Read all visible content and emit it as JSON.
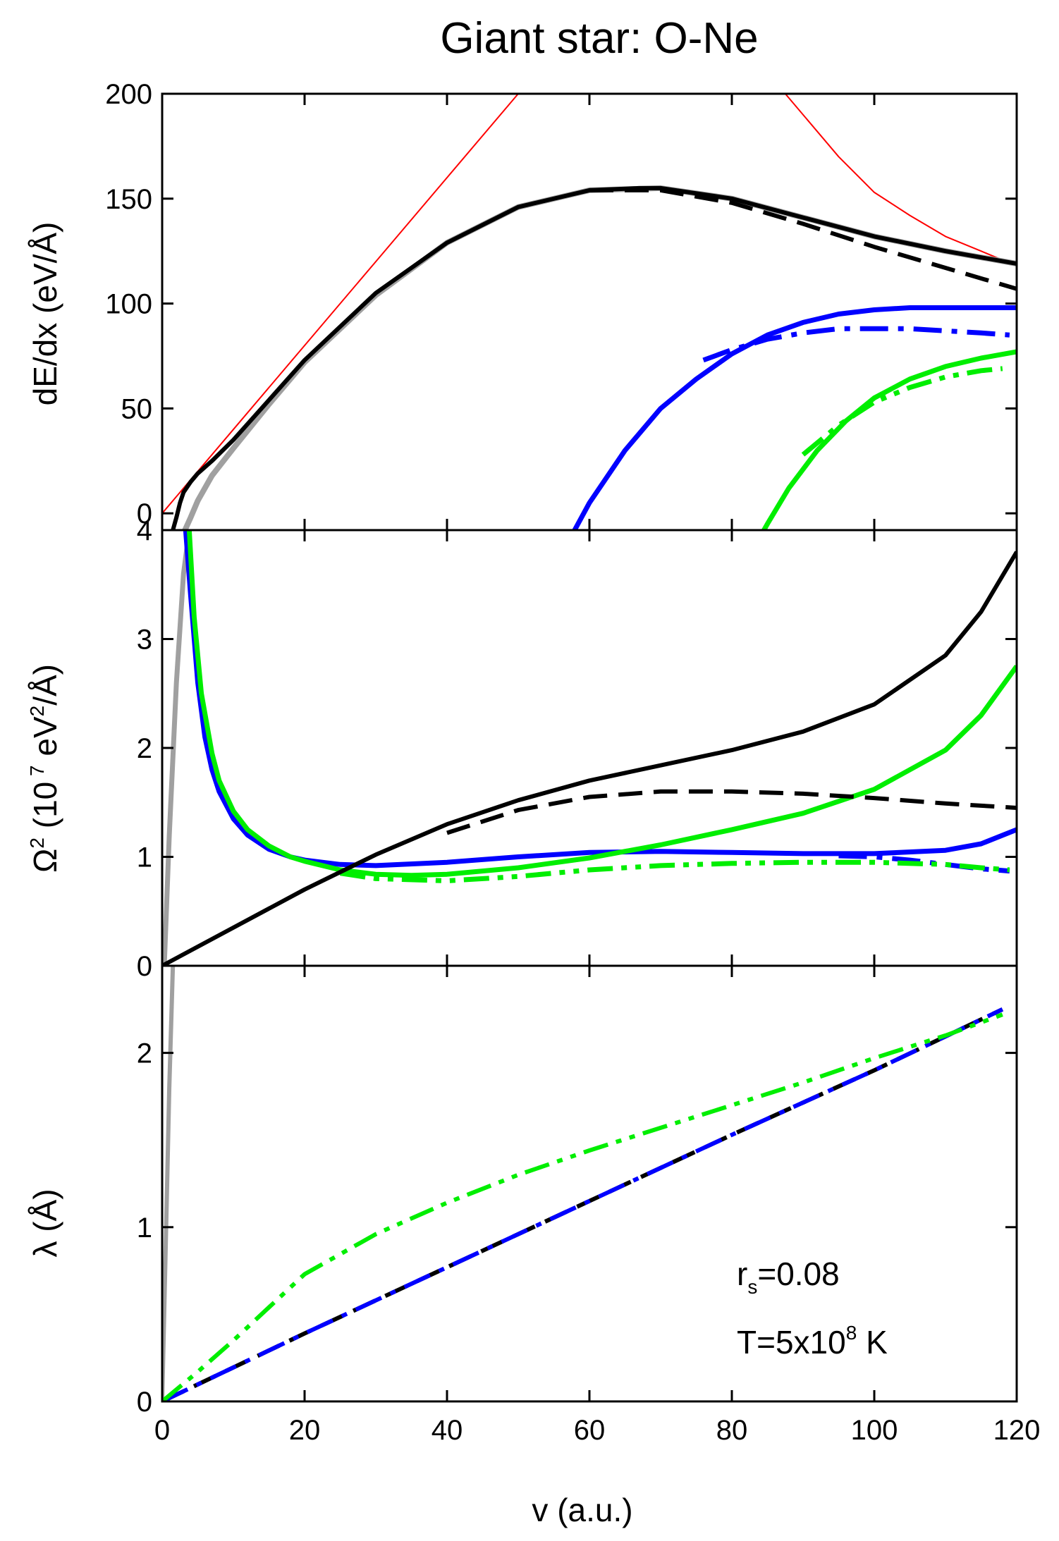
{
  "chart_data": {
    "title": "Giant star:  O-Ne",
    "shared_x": {
      "label": "v (a.u.)",
      "range": [
        0,
        120
      ],
      "ticks": [
        0,
        20,
        40,
        60,
        80,
        100,
        120
      ],
      "tick_labels": [
        "0",
        "20",
        "40",
        "60",
        "80",
        "100",
        "120"
      ]
    },
    "annotation": {
      "rs_main": "r",
      "rs_sub": "s",
      "rs_value": "=0.08",
      "T_main": "T=5x10",
      "T_exp": "8",
      "T_unit": " K"
    },
    "panels": [
      {
        "type": "line",
        "id": "stopping",
        "ylabel": "dE/dx (eV/Å)",
        "ylim": [
          -8,
          200
        ],
        "yticks": [
          0,
          50,
          100,
          150,
          200
        ],
        "ytick_labels": [
          "0",
          "50",
          "100",
          "150",
          "200"
        ],
        "series": [
          {
            "name": "red-asymptote-low",
            "color": "#ff0000",
            "style": "solid",
            "width": 2,
            "x": [
              0,
              5,
              10,
              20,
              30,
              40,
              50
            ],
            "y": [
              0,
              20,
              40,
              80,
              120,
              160,
              200
            ]
          },
          {
            "name": "red-asymptote-high",
            "color": "#ff0000",
            "style": "solid",
            "width": 2,
            "x": [
              87.5,
              95,
              100,
              105,
              110,
              115,
              118.5
            ],
            "y": [
              200,
              170,
              153,
              142,
              132,
              125,
              120
            ]
          },
          {
            "name": "grey-total",
            "color": "#a0a0a0",
            "style": "solid",
            "width": 8,
            "x": [
              3.2,
              4,
              5,
              7,
              10,
              15,
              20,
              30,
              40,
              50,
              60,
              70,
              80,
              90,
              100,
              110,
              120
            ],
            "y": [
              -8,
              -2,
              6,
              18,
              31,
              52,
              72,
              104,
              129,
              146,
              154,
              155,
              150,
              141,
              132,
              125,
              119
            ]
          },
          {
            "name": "black-total",
            "color": "#000000",
            "style": "solid",
            "width": 6,
            "x": [
              1.5,
              2,
              2.5,
              3,
              4,
              5,
              7,
              10,
              15,
              20,
              30,
              40,
              50,
              60,
              67,
              70,
              80,
              90,
              100,
              110,
              120
            ],
            "y": [
              -8,
              -2,
              5,
              10,
              15,
              19,
              25,
              35,
              54,
              73,
              105,
              129,
              146,
              154,
              155,
              155,
              150,
              141,
              132,
              125,
              119
            ]
          },
          {
            "name": "black-dash",
            "color": "#000000",
            "style": "dash",
            "width": 6,
            "x": [
              60,
              70,
              80,
              90,
              100,
              110,
              120
            ],
            "y": [
              154,
              154,
              148,
              138,
              127,
              117,
              107
            ]
          },
          {
            "name": "blue-solid",
            "color": "#0000ff",
            "style": "solid",
            "width": 7,
            "x": [
              56,
              60,
              65,
              70,
              75,
              80,
              85,
              90,
              95,
              100,
              105,
              110,
              115,
              120
            ],
            "y": [
              -20,
              5,
              30,
              50,
              64,
              76,
              85,
              91,
              95,
              97,
              98,
              98,
              98,
              98
            ]
          },
          {
            "name": "blue-dashdot",
            "color": "#0000ff",
            "style": "dashdot",
            "width": 7,
            "x": [
              76,
              80,
              85,
              90,
              95,
              100,
              105,
              110,
              115,
              119
            ],
            "y": [
              73,
              78,
              83,
              86,
              88,
              88,
              88,
              87,
              86,
              85
            ]
          },
          {
            "name": "green-solid",
            "color": "#00ee00",
            "style": "solid",
            "width": 7,
            "x": [
              82.5,
              85,
              88,
              92,
              96,
              100,
              105,
              110,
              115,
              120
            ],
            "y": [
              -20,
              -5,
              12,
              30,
              44,
              55,
              64,
              70,
              74,
              77
            ]
          },
          {
            "name": "green-dashdotdot",
            "color": "#00ee00",
            "style": "dashdotdot",
            "width": 7,
            "x": [
              90,
              95,
              100,
              105,
              110,
              115,
              118
            ],
            "y": [
              28,
              42,
              53,
              60,
              65,
              68,
              69
            ]
          }
        ]
      },
      {
        "type": "line",
        "id": "straggling",
        "ylabel_parts": {
          "omega": "Ω",
          "sq1": "2",
          "open": " (10",
          "exp": " 7",
          "unit": " eV",
          "sq2": "2",
          "close": "/Å)"
        },
        "ylim": [
          0,
          4
        ],
        "yticks": [
          0,
          1,
          2,
          3,
          4
        ],
        "ytick_labels": [
          "0",
          "1",
          "2",
          "3",
          "4"
        ],
        "series": [
          {
            "name": "grey-rise",
            "color": "#a0a0a0",
            "style": "solid",
            "width": 7,
            "x": [
              0.3,
              1,
              2,
              3,
              3.8
            ],
            "y": [
              0,
              1.2,
              2.6,
              3.6,
              4.0
            ]
          },
          {
            "name": "blue-solid",
            "color": "#0000ff",
            "style": "solid",
            "width": 7,
            "x": [
              3.3,
              4,
              5,
              6,
              7,
              8,
              10,
              12,
              15,
              18,
              20,
              25,
              30,
              40,
              50,
              60,
              70,
              80,
              90,
              100,
              110,
              115,
              120
            ],
            "y": [
              4.0,
              3.4,
              2.6,
              2.1,
              1.8,
              1.6,
              1.35,
              1.2,
              1.07,
              1.0,
              0.97,
              0.93,
              0.92,
              0.95,
              1.0,
              1.04,
              1.05,
              1.04,
              1.03,
              1.03,
              1.06,
              1.12,
              1.25
            ]
          },
          {
            "name": "blue-dashdot",
            "color": "#0000ff",
            "style": "dashdot",
            "width": 7,
            "x": [
              95,
              100,
              105,
              110,
              115,
              119
            ],
            "y": [
              1.01,
              1.0,
              0.97,
              0.93,
              0.89,
              0.87
            ]
          },
          {
            "name": "green-solid",
            "color": "#00ee00",
            "style": "solid",
            "width": 7,
            "x": [
              3.8,
              4.5,
              5.5,
              7,
              8,
              10,
              12,
              15,
              18,
              20,
              25,
              30,
              35,
              40,
              50,
              60,
              70,
              80,
              90,
              100,
              110,
              115,
              120
            ],
            "y": [
              4.0,
              3.2,
              2.5,
              1.95,
              1.7,
              1.42,
              1.25,
              1.1,
              1.0,
              0.96,
              0.88,
              0.84,
              0.83,
              0.84,
              0.9,
              0.99,
              1.11,
              1.25,
              1.4,
              1.62,
              1.98,
              2.3,
              2.75
            ]
          },
          {
            "name": "green-dashdotdot",
            "color": "#00ee00",
            "style": "dashdotdot",
            "width": 7,
            "x": [
              25,
              30,
              40,
              50,
              60,
              70,
              80,
              90,
              100,
              110,
              115,
              119
            ],
            "y": [
              0.85,
              0.8,
              0.78,
              0.82,
              0.88,
              0.92,
              0.94,
              0.95,
              0.95,
              0.93,
              0.9,
              0.88
            ]
          },
          {
            "name": "black-solid",
            "color": "#000000",
            "style": "solid",
            "width": 6,
            "x": [
              0,
              10,
              20,
              30,
              40,
              50,
              60,
              70,
              80,
              90,
              100,
              110,
              115,
              120
            ],
            "y": [
              0,
              0.35,
              0.7,
              1.02,
              1.3,
              1.52,
              1.7,
              1.84,
              1.98,
              2.15,
              2.4,
              2.85,
              3.25,
              3.8
            ]
          },
          {
            "name": "black-dash",
            "color": "#000000",
            "style": "dash",
            "width": 6,
            "x": [
              40,
              50,
              60,
              70,
              80,
              90,
              100,
              110,
              120
            ],
            "y": [
              1.22,
              1.43,
              1.55,
              1.6,
              1.6,
              1.58,
              1.54,
              1.49,
              1.45
            ]
          }
        ]
      },
      {
        "type": "line",
        "id": "wavelength",
        "ylabel": "λ (Å)",
        "ylim": [
          0,
          2.5
        ],
        "yticks": [
          0,
          1,
          2
        ],
        "ytick_labels": [
          "0",
          "1",
          "2"
        ],
        "series": [
          {
            "name": "grey-spike",
            "color": "#a0a0a0",
            "style": "solid",
            "width": 6,
            "x": [
              0,
              0.5,
              1,
              1.5
            ],
            "y": [
              0,
              0.9,
              1.8,
              2.5
            ]
          },
          {
            "name": "black-dash",
            "color": "#000000",
            "style": "dash",
            "width": 6,
            "x": [
              0,
              20,
              40,
              60,
              80,
              100,
              118
            ],
            "y": [
              0,
              0.39,
              0.77,
              1.15,
              1.53,
              1.9,
              2.25
            ]
          },
          {
            "name": "blue-dashdot",
            "color": "#0000ff",
            "style": "dashdot",
            "width": 6,
            "x": [
              0,
              20,
              40,
              60,
              80,
              100,
              118
            ],
            "y": [
              0,
              0.39,
              0.77,
              1.15,
              1.53,
              1.9,
              2.25
            ]
          },
          {
            "name": "green-dashdotdot",
            "color": "#00ee00",
            "style": "dashdotdot",
            "width": 6,
            "x": [
              0,
              5,
              10,
              20,
              30,
              40,
              50,
              60,
              70,
              80,
              90,
              100,
              110,
              118
            ],
            "y": [
              0,
              0.17,
              0.35,
              0.73,
              0.96,
              1.14,
              1.3,
              1.44,
              1.57,
              1.7,
              1.83,
              1.97,
              2.1,
              2.22
            ]
          }
        ]
      }
    ]
  }
}
